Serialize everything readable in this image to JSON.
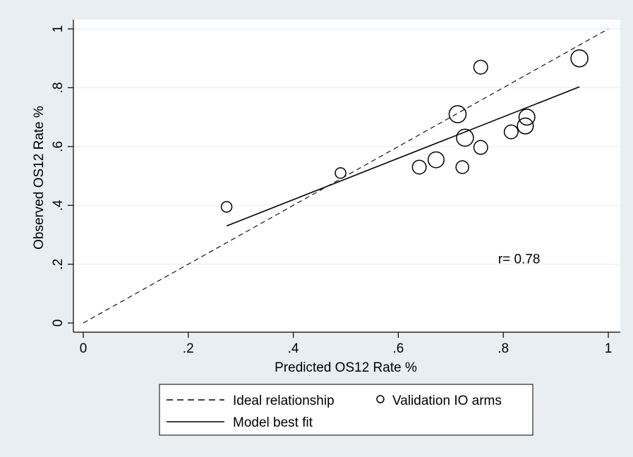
{
  "chart_data": {
    "type": "scatter",
    "xlabel": "Predicted OS12 Rate %",
    "ylabel": "Observed OS12 Rate %",
    "xlim": [
      0,
      1
    ],
    "ylim": [
      0,
      1
    ],
    "x_ticks": [
      {
        "value": 0,
        "label": "0"
      },
      {
        "value": 0.2,
        "label": ".2"
      },
      {
        "value": 0.4,
        "label": ".4"
      },
      {
        "value": 0.6,
        "label": ".6"
      },
      {
        "value": 0.8,
        "label": ".8"
      },
      {
        "value": 1,
        "label": "1"
      }
    ],
    "y_ticks": [
      {
        "value": 0,
        "label": "0"
      },
      {
        "value": 0.2,
        "label": ".2"
      },
      {
        "value": 0.4,
        "label": ".4"
      },
      {
        "value": 0.6,
        "label": ".6"
      },
      {
        "value": 0.8,
        "label": ".8"
      },
      {
        "value": 1,
        "label": "1"
      }
    ],
    "grid": "horizontal",
    "series": [
      {
        "name": "Validation IO arms",
        "kind": "bubble",
        "points": [
          {
            "x": 0.273,
            "y": 0.395,
            "size": 1.0
          },
          {
            "x": 0.49,
            "y": 0.51,
            "size": 1.0
          },
          {
            "x": 0.64,
            "y": 0.53,
            "size": 1.3
          },
          {
            "x": 0.672,
            "y": 0.555,
            "size": 1.5
          },
          {
            "x": 0.713,
            "y": 0.71,
            "size": 1.6
          },
          {
            "x": 0.722,
            "y": 0.53,
            "size": 1.2
          },
          {
            "x": 0.727,
            "y": 0.63,
            "size": 1.6
          },
          {
            "x": 0.757,
            "y": 0.87,
            "size": 1.3
          },
          {
            "x": 0.757,
            "y": 0.597,
            "size": 1.3
          },
          {
            "x": 0.815,
            "y": 0.65,
            "size": 1.3
          },
          {
            "x": 0.842,
            "y": 0.67,
            "size": 1.5
          },
          {
            "x": 0.845,
            "y": 0.7,
            "size": 1.5
          },
          {
            "x": 0.945,
            "y": 0.9,
            "size": 1.6
          }
        ]
      },
      {
        "name": "Ideal relationship",
        "kind": "line",
        "style": "dashed",
        "x": [
          0,
          1
        ],
        "y": [
          0,
          1
        ]
      },
      {
        "name": "Model best fit",
        "kind": "line",
        "style": "solid",
        "x": [
          0.273,
          0.945
        ],
        "y": [
          0.33,
          0.803
        ]
      }
    ],
    "annotations": [
      {
        "text": "r= 0.78",
        "x": 0.79,
        "y": 0.22
      }
    ],
    "legend": {
      "placement": "bottom",
      "entries": [
        {
          "label": "Ideal relationship",
          "marker": "dashed-line"
        },
        {
          "label": "Validation IO arms",
          "marker": "circle"
        },
        {
          "label": "Model best fit",
          "marker": "solid-line"
        }
      ]
    },
    "colors": {
      "background": "#e8eef2",
      "plot_background": "#ffffff",
      "ink": "#000000",
      "grid": "#e8eef2"
    }
  }
}
